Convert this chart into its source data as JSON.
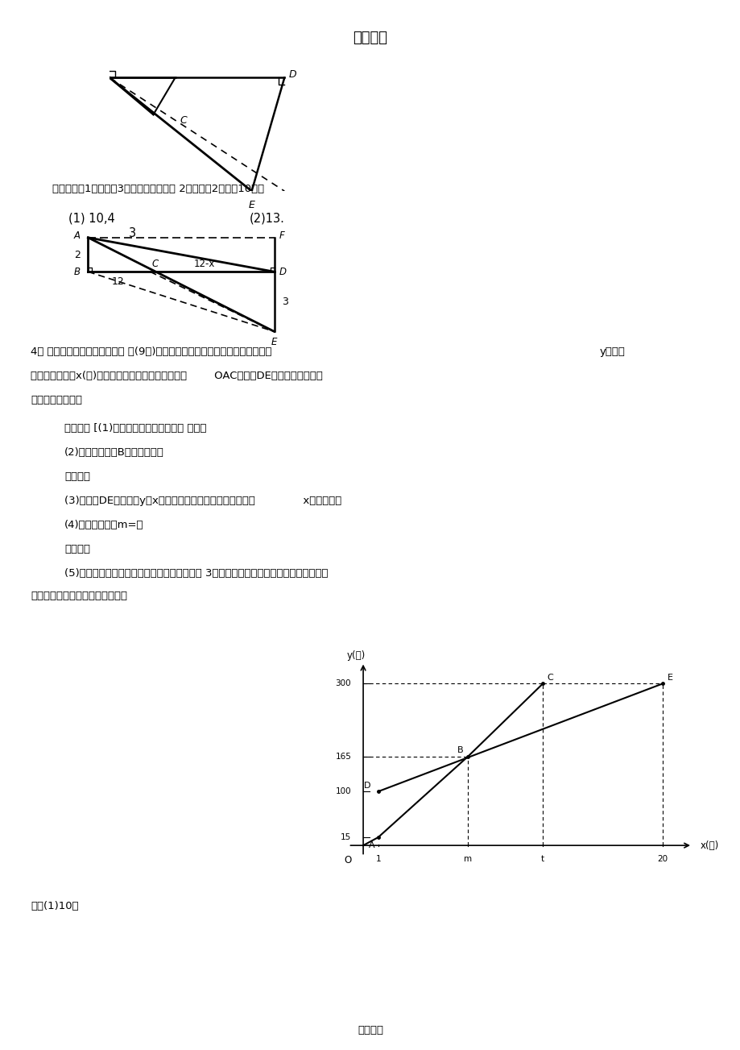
{
  "title": "精品资源",
  "footer": "欢迎下载",
  "bg_color": "#ffffff",
  "page_width": 9.2,
  "page_height": 13.03,
  "answer_text": "答案：（第1小题每空3分，第二小题图形 2分，结论2分，共10分）",
  "ans1": "(1) 10,4",
  "ans1_sub": "3",
  "ans2": "(2)13.",
  "problem4_line1": "4、 （河南西华县王营中学一摸 ）(9分)小强和爸爸上山游玩，两人距地面的高度",
  "problem4_y": "y（米）",
  "problem4_line2": "与小强登山时间x(分)之间的函数图象分别如图中折线        OAC和线段DE所示，根据函数图",
  "problem4_line3": "象进行以下探究：",
  "info_read": "信息读取 [(1)爸爸登山的速度是每分钟 一米；",
  "sub2": "(2)请解释图中点B的实际意义：",
  "image_under": "图象理解",
  "sub3": "(3)求线段DE所表示的y与x之间的函数关系式，并写出自变量              x的取值范围",
  "sub4": "(4)计算、填空；m=；",
  "prob_solve": "问题解决",
  "sub5": "(5)若小强提速后，他登山的速度是爸爸速度的 3倍，间：小强登山多长时间时开始提速？",
  "sub5b": "此时小强距地面的高度是多少米？",
  "solution": "解：(1)10；",
  "graph_ylim": [
    -25,
    345
  ],
  "graph_xlim": [
    -1.5,
    23
  ],
  "graph_O": [
    0,
    0
  ],
  "graph_A": [
    1,
    15
  ],
  "graph_B": [
    7,
    165
  ],
  "graph_C": [
    12,
    300
  ],
  "graph_D": [
    1,
    100
  ],
  "graph_E": [
    20,
    300
  ],
  "graph_m": 7,
  "graph_t": 12,
  "y_ticks": [
    [
      15,
      "15"
    ],
    [
      100,
      "100"
    ],
    [
      165,
      "165"
    ],
    [
      300,
      "300"
    ]
  ],
  "x_ticks": [
    [
      1,
      "1"
    ],
    [
      7,
      "m"
    ],
    [
      12,
      "t"
    ],
    [
      20,
      "20"
    ]
  ]
}
